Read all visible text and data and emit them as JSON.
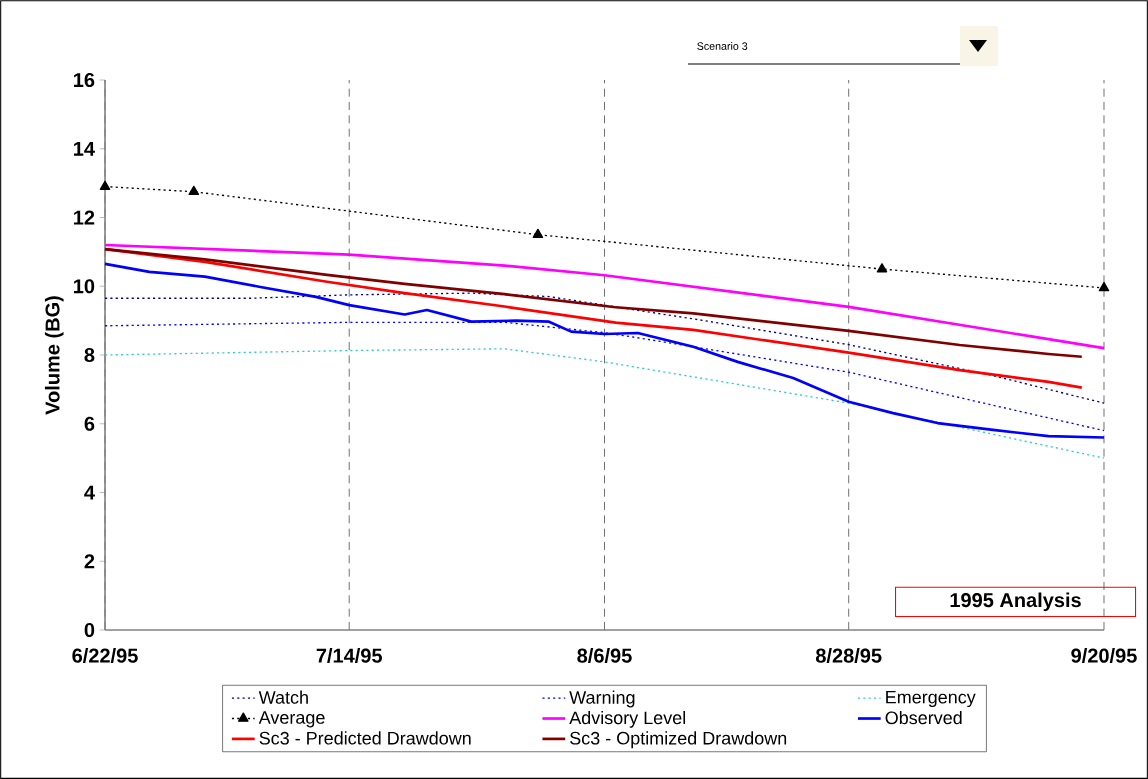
{
  "chart_data": {
    "type": "line",
    "ylabel": "Volume (BG)",
    "annotations": [
      "Scenario 3",
      "1995 Analysis"
    ],
    "xlim": [
      "1995-06-22",
      "1995-09-20"
    ],
    "xticks": [
      {
        "value": "1995-06-22",
        "label": "6/22/95"
      },
      {
        "value": "1995-07-14",
        "label": "7/14/95"
      },
      {
        "value": "1995-08-06",
        "label": "8/6/95"
      },
      {
        "value": "1995-08-28",
        "label": "8/28/95"
      },
      {
        "value": "1995-09-20",
        "label": "9/20/95"
      }
    ],
    "ylim": [
      0,
      16
    ],
    "yticks": [
      0,
      2,
      4,
      6,
      8,
      10,
      12,
      14,
      16
    ],
    "grid": "x",
    "legend": "bottom",
    "series": [
      {
        "name": "Watch",
        "color": "#000080",
        "line_style": "dotted",
        "x": [
          "1995-06-22",
          "1995-07-05",
          "1995-07-14",
          "1995-07-25",
          "1995-08-01",
          "1995-08-06",
          "1995-08-15",
          "1995-08-28",
          "1995-09-10",
          "1995-09-20"
        ],
        "values": [
          9.65,
          9.65,
          9.75,
          9.8,
          9.7,
          9.45,
          9.0,
          8.3,
          7.4,
          6.6
        ]
      },
      {
        "name": "Warning",
        "color": "#0000ff",
        "line_style": "dotted",
        "x": [
          "1995-06-22",
          "1995-07-14",
          "1995-07-28",
          "1995-08-06",
          "1995-08-10",
          "1995-08-28",
          "1995-09-20"
        ],
        "values": [
          8.85,
          8.95,
          8.95,
          8.65,
          8.45,
          7.5,
          5.8
        ]
      },
      {
        "name": "Emergency",
        "color": "#33cccc",
        "line_style": "dotted",
        "x": [
          "1995-06-22",
          "1995-07-14",
          "1995-07-28",
          "1995-08-06",
          "1995-08-28",
          "1995-09-20"
        ],
        "values": [
          8.0,
          8.13,
          8.18,
          7.8,
          6.6,
          5.0
        ]
      },
      {
        "name": "Average",
        "color": "#000000",
        "line_style": "dotted",
        "marker": "triangle",
        "x": [
          "1995-06-22",
          "1995-06-30",
          "1995-07-31",
          "1995-08-31",
          "1995-09-20"
        ],
        "values": [
          12.9,
          12.75,
          11.5,
          10.5,
          9.95
        ]
      },
      {
        "name": "Advisory Level",
        "color": "#ff00ff",
        "line_style": "solid",
        "x": [
          "1995-06-22",
          "1995-07-14",
          "1995-07-28",
          "1995-08-06",
          "1995-08-28",
          "1995-09-20"
        ],
        "values": [
          11.2,
          10.92,
          10.6,
          10.32,
          9.4,
          8.2
        ]
      },
      {
        "name": "Observed",
        "color": "#0000ff",
        "line_style": "solid",
        "x": [
          "1995-06-22",
          "1995-06-26",
          "1995-07-01",
          "1995-07-06",
          "1995-07-11",
          "1995-07-14",
          "1995-07-19",
          "1995-07-21",
          "1995-07-25",
          "1995-07-29",
          "1995-08-01",
          "1995-08-03",
          "1995-08-06",
          "1995-08-09",
          "1995-08-14",
          "1995-08-18",
          "1995-08-23",
          "1995-08-28",
          "1995-09-01",
          "1995-09-05",
          "1995-09-10",
          "1995-09-15",
          "1995-09-20"
        ],
        "values": [
          10.65,
          10.42,
          10.28,
          9.98,
          9.69,
          9.45,
          9.18,
          9.31,
          8.97,
          9.0,
          8.97,
          8.68,
          8.61,
          8.64,
          8.24,
          7.8,
          7.33,
          6.64,
          6.31,
          6.02,
          5.82,
          5.64,
          5.6
        ]
      },
      {
        "name": "Sc3 - Predicted Drawdown",
        "color": "#ff0000",
        "line_style": "solid",
        "x": [
          "1995-06-22",
          "1995-07-01",
          "1995-07-12",
          "1995-07-19",
          "1995-07-28",
          "1995-08-07",
          "1995-08-14",
          "1995-08-28",
          "1995-09-07",
          "1995-09-15",
          "1995-09-18"
        ],
        "values": [
          11.08,
          10.71,
          10.13,
          9.8,
          9.41,
          8.94,
          8.73,
          8.07,
          7.56,
          7.22,
          7.05
        ]
      },
      {
        "name": "Sc3 - Optimized Drawdown",
        "color": "#800000",
        "line_style": "solid",
        "x": [
          "1995-06-22",
          "1995-07-01",
          "1995-07-12",
          "1995-07-19",
          "1995-07-28",
          "1995-08-07",
          "1995-08-14",
          "1995-08-28",
          "1995-09-07",
          "1995-09-15",
          "1995-09-18"
        ],
        "values": [
          11.08,
          10.78,
          10.33,
          10.07,
          9.77,
          9.39,
          9.21,
          8.7,
          8.29,
          8.03,
          7.95
        ]
      }
    ]
  }
}
